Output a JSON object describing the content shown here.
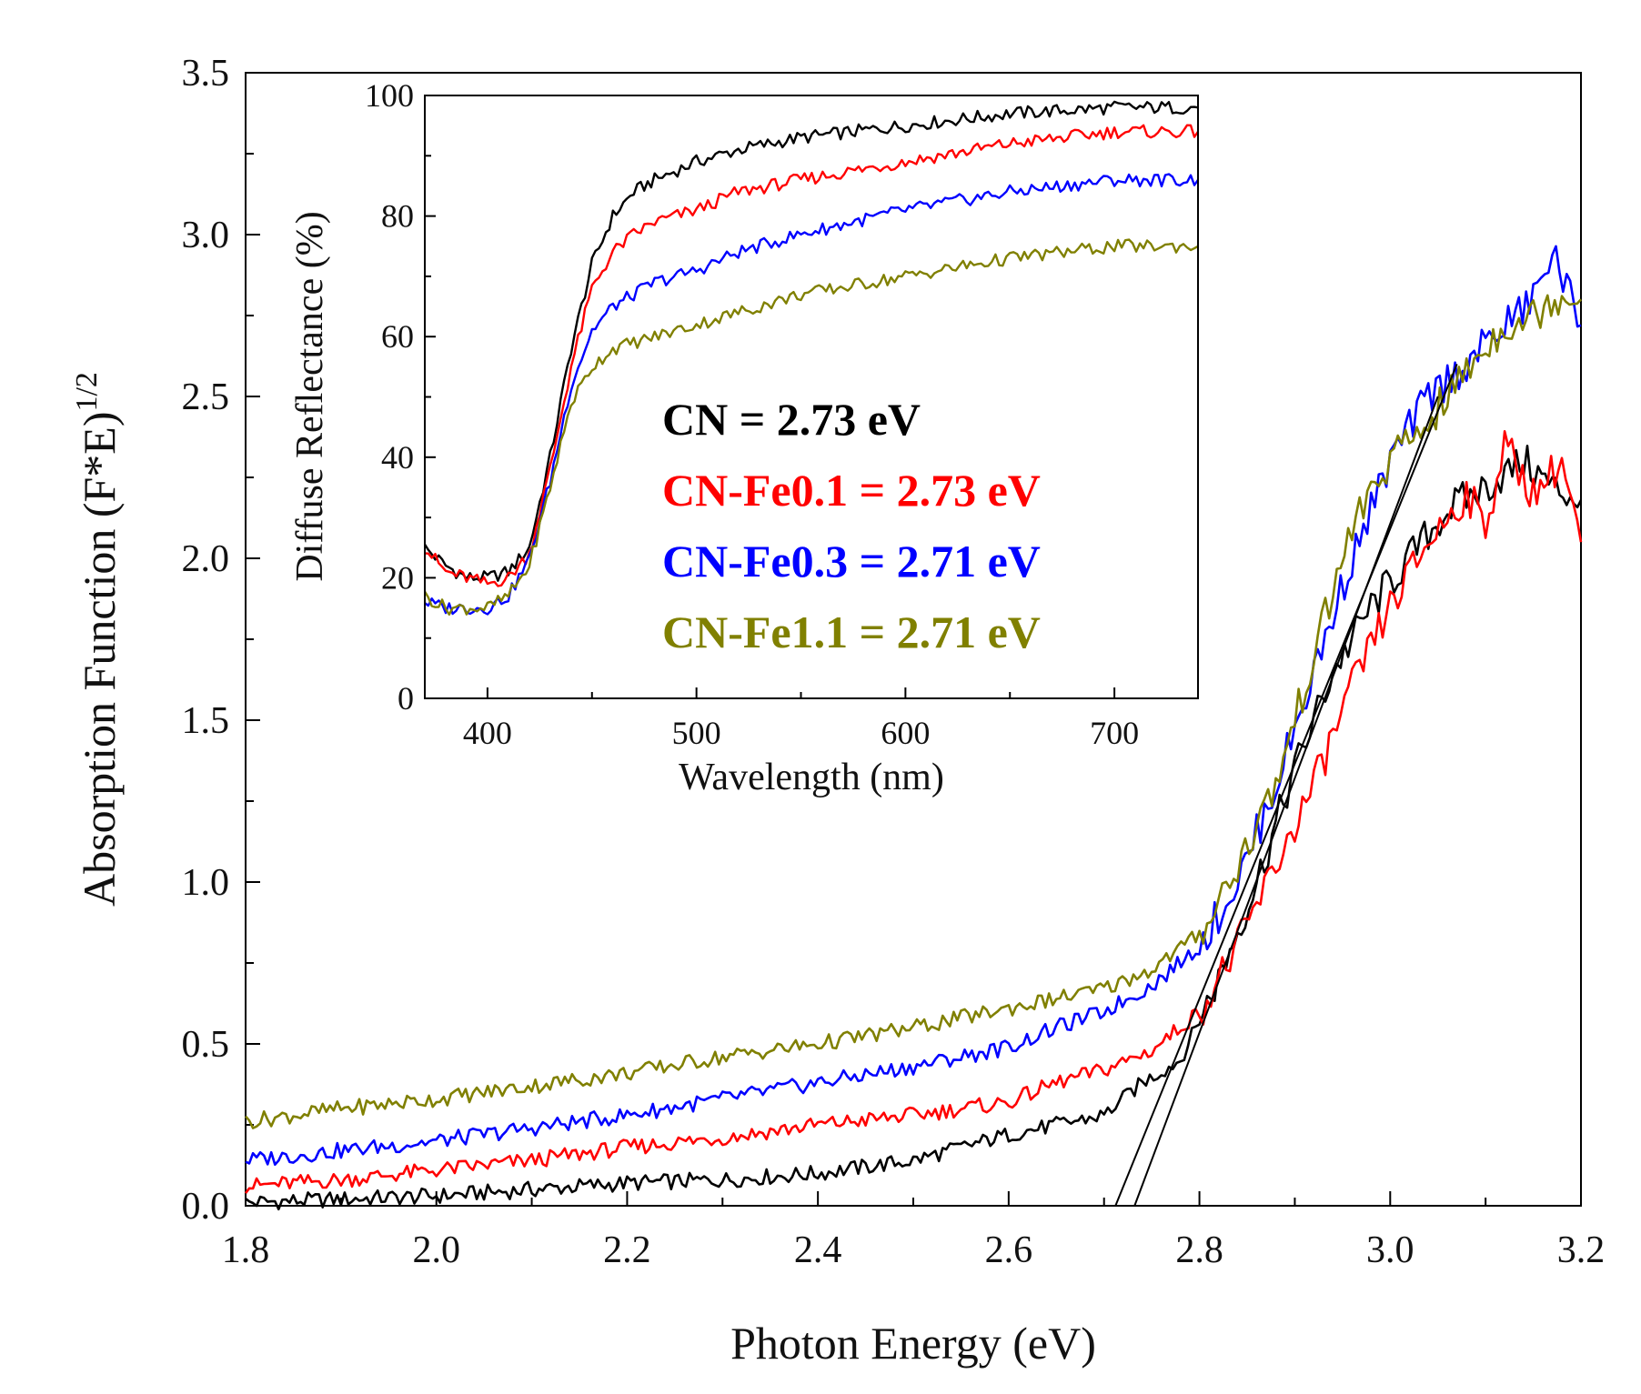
{
  "chart_data": [
    {
      "type": "line",
      "name": "main",
      "xlabel": "Photon Energy (eV)",
      "ylabel": "Absorption Function (F*E)",
      "ylabel_sup": "1/2",
      "xlim": [
        1.8,
        3.2
      ],
      "ylim": [
        0.0,
        3.5
      ],
      "xticks": [
        1.8,
        2.0,
        2.2,
        2.4,
        2.6,
        2.8,
        3.0,
        3.2
      ],
      "xtick_labels": [
        "1.8",
        "2.0",
        "2.2",
        "2.4",
        "2.6",
        "2.8",
        "3.0",
        "3.2"
      ],
      "yticks": [
        0.0,
        0.5,
        1.0,
        1.5,
        2.0,
        2.5,
        3.0,
        3.5
      ],
      "ytick_labels": [
        "0.0",
        "0.5",
        "1.0",
        "1.5",
        "2.0",
        "2.5",
        "3.0",
        "3.5"
      ],
      "series": [
        {
          "name": "CN",
          "color": "#000000",
          "points": [
            [
              1.8,
              0.01
            ],
            [
              1.9,
              0.02
            ],
            [
              2.0,
              0.03
            ],
            [
              2.1,
              0.05
            ],
            [
              2.2,
              0.07
            ],
            [
              2.3,
              0.08
            ],
            [
              2.4,
              0.1
            ],
            [
              2.5,
              0.14
            ],
            [
              2.55,
              0.18
            ],
            [
              2.6,
              0.22
            ],
            [
              2.65,
              0.25
            ],
            [
              2.7,
              0.28
            ],
            [
              2.74,
              0.38
            ],
            [
              2.78,
              0.45
            ],
            [
              2.82,
              0.7
            ],
            [
              2.86,
              1.0
            ],
            [
              2.9,
              1.35
            ],
            [
              2.94,
              1.65
            ],
            [
              2.98,
              1.85
            ],
            [
              3.02,
              2.0
            ],
            [
              3.06,
              2.15
            ],
            [
              3.1,
              2.22
            ],
            [
              3.14,
              2.3
            ],
            [
              3.17,
              2.22
            ],
            [
              3.2,
              2.18
            ]
          ]
        },
        {
          "name": "CN-Fe0.1",
          "color": "#ff0000",
          "points": [
            [
              1.8,
              0.06
            ],
            [
              1.9,
              0.08
            ],
            [
              2.0,
              0.11
            ],
            [
              2.1,
              0.14
            ],
            [
              2.2,
              0.18
            ],
            [
              2.3,
              0.21
            ],
            [
              2.4,
              0.25
            ],
            [
              2.5,
              0.28
            ],
            [
              2.6,
              0.32
            ],
            [
              2.65,
              0.38
            ],
            [
              2.7,
              0.42
            ],
            [
              2.75,
              0.48
            ],
            [
              2.8,
              0.6
            ],
            [
              2.84,
              0.8
            ],
            [
              2.88,
              1.05
            ],
            [
              2.92,
              1.3
            ],
            [
              2.96,
              1.6
            ],
            [
              3.0,
              1.85
            ],
            [
              3.04,
              2.05
            ],
            [
              3.08,
              2.2
            ],
            [
              3.1,
              2.1
            ],
            [
              3.12,
              2.35
            ],
            [
              3.15,
              2.2
            ],
            [
              3.18,
              2.3
            ],
            [
              3.2,
              2.05
            ]
          ]
        },
        {
          "name": "CN-Fe0.3",
          "color": "#0000ff",
          "points": [
            [
              1.8,
              0.14
            ],
            [
              1.9,
              0.17
            ],
            [
              2.0,
              0.2
            ],
            [
              2.1,
              0.24
            ],
            [
              2.2,
              0.28
            ],
            [
              2.3,
              0.33
            ],
            [
              2.4,
              0.38
            ],
            [
              2.5,
              0.43
            ],
            [
              2.6,
              0.49
            ],
            [
              2.65,
              0.55
            ],
            [
              2.7,
              0.6
            ],
            [
              2.75,
              0.68
            ],
            [
              2.8,
              0.8
            ],
            [
              2.84,
              1.0
            ],
            [
              2.88,
              1.3
            ],
            [
              2.92,
              1.65
            ],
            [
              2.96,
              2.0
            ],
            [
              3.0,
              2.3
            ],
            [
              3.04,
              2.5
            ],
            [
              3.08,
              2.6
            ],
            [
              3.12,
              2.72
            ],
            [
              3.15,
              2.8
            ],
            [
              3.17,
              2.95
            ],
            [
              3.2,
              2.72
            ]
          ]
        },
        {
          "name": "CN-Fe1.1",
          "color": "#808000",
          "points": [
            [
              1.8,
              0.26
            ],
            [
              1.9,
              0.3
            ],
            [
              2.0,
              0.33
            ],
            [
              2.1,
              0.37
            ],
            [
              2.2,
              0.41
            ],
            [
              2.3,
              0.46
            ],
            [
              2.4,
              0.5
            ],
            [
              2.5,
              0.55
            ],
            [
              2.6,
              0.61
            ],
            [
              2.7,
              0.67
            ],
            [
              2.75,
              0.73
            ],
            [
              2.8,
              0.84
            ],
            [
              2.84,
              1.05
            ],
            [
              2.88,
              1.3
            ],
            [
              2.92,
              1.7
            ],
            [
              2.96,
              2.1
            ],
            [
              3.0,
              2.3
            ],
            [
              3.04,
              2.42
            ],
            [
              3.08,
              2.58
            ],
            [
              3.12,
              2.72
            ],
            [
              3.15,
              2.75
            ],
            [
              3.18,
              2.82
            ],
            [
              3.2,
              2.8
            ]
          ]
        }
      ],
      "tangents": [
        {
          "points": [
            [
              2.712,
              0.0
            ],
            [
              3.07,
              2.6
            ]
          ]
        },
        {
          "points": [
            [
              2.732,
              0.0
            ],
            [
              3.05,
              2.5
            ]
          ]
        }
      ]
    },
    {
      "type": "line",
      "name": "inset",
      "xlabel": "Wavelength (nm)",
      "ylabel": "Diffuse Reflectance (%)",
      "xlim": [
        370,
        740
      ],
      "ylim": [
        0,
        100
      ],
      "xticks": [
        400,
        500,
        600,
        700
      ],
      "xtick_labels": [
        "400",
        "500",
        "600",
        "700"
      ],
      "yticks": [
        0,
        20,
        40,
        60,
        80,
        100
      ],
      "ytick_labels": [
        "0",
        "20",
        "40",
        "60",
        "80",
        "100"
      ],
      "series": [
        {
          "name": "CN",
          "color": "#000000",
          "points": [
            [
              370,
              25
            ],
            [
              380,
              22
            ],
            [
              390,
              20
            ],
            [
              400,
              20
            ],
            [
              410,
              21
            ],
            [
              420,
              25
            ],
            [
              430,
              40
            ],
            [
              440,
              58
            ],
            [
              450,
              72
            ],
            [
              460,
              80
            ],
            [
              470,
              84
            ],
            [
              480,
              86
            ],
            [
              500,
              89
            ],
            [
              520,
              91
            ],
            [
              550,
              93
            ],
            [
              600,
              95
            ],
            [
              650,
              97
            ],
            [
              700,
              98
            ],
            [
              740,
              98
            ]
          ]
        },
        {
          "name": "CN-Fe0.1",
          "color": "#ff0000",
          "points": [
            [
              370,
              25
            ],
            [
              380,
              21
            ],
            [
              390,
              20
            ],
            [
              400,
              19
            ],
            [
              410,
              20
            ],
            [
              420,
              24
            ],
            [
              430,
              38
            ],
            [
              440,
              55
            ],
            [
              450,
              68
            ],
            [
              460,
              74
            ],
            [
              470,
              77
            ],
            [
              480,
              79
            ],
            [
              500,
              81
            ],
            [
              520,
              84
            ],
            [
              550,
              86
            ],
            [
              600,
              89
            ],
            [
              650,
              92
            ],
            [
              700,
              94
            ],
            [
              740,
              94
            ]
          ]
        },
        {
          "name": "CN-Fe0.3",
          "color": "#0000ff",
          "points": [
            [
              370,
              16
            ],
            [
              380,
              15
            ],
            [
              390,
              15
            ],
            [
              400,
              15
            ],
            [
              410,
              17
            ],
            [
              420,
              23
            ],
            [
              430,
              36
            ],
            [
              440,
              52
            ],
            [
              450,
              61
            ],
            [
              460,
              65
            ],
            [
              470,
              67
            ],
            [
              480,
              69
            ],
            [
              500,
              71
            ],
            [
              520,
              74
            ],
            [
              550,
              77
            ],
            [
              600,
              81
            ],
            [
              650,
              84
            ],
            [
              700,
              86
            ],
            [
              740,
              86
            ]
          ]
        },
        {
          "name": "CN-Fe1.1",
          "color": "#808000",
          "points": [
            [
              370,
              17
            ],
            [
              380,
              15
            ],
            [
              390,
              15
            ],
            [
              400,
              15
            ],
            [
              410,
              17
            ],
            [
              420,
              22
            ],
            [
              430,
              35
            ],
            [
              440,
              49
            ],
            [
              450,
              55
            ],
            [
              460,
              58
            ],
            [
              470,
              59
            ],
            [
              480,
              60
            ],
            [
              500,
              62
            ],
            [
              520,
              64
            ],
            [
              550,
              67
            ],
            [
              600,
              70
            ],
            [
              650,
              73
            ],
            [
              700,
              75
            ],
            [
              740,
              75
            ]
          ]
        }
      ]
    }
  ],
  "legend": [
    {
      "label": "CN = 2.73 eV",
      "color": "#000000"
    },
    {
      "label": "CN-Fe0.1 = 2.73 eV",
      "color": "#ff0000"
    },
    {
      "label": "CN-Fe0.3 = 2.71 eV",
      "color": "#0000ff"
    },
    {
      "label": "CN-Fe1.1 = 2.71 eV",
      "color": "#808000"
    }
  ]
}
